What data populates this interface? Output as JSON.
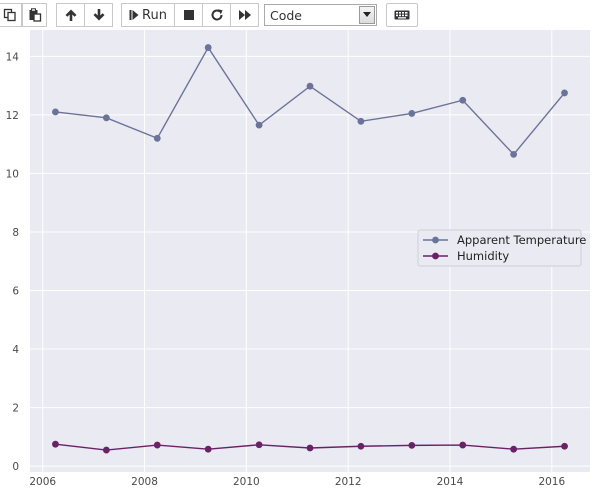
{
  "toolbar": {
    "run_label": "Run",
    "cell_type_value": "Code",
    "cell_type_options": [
      "Code"
    ]
  },
  "icons": {
    "copy": "copy-icon",
    "paste": "paste-icon",
    "up": "arrow-up-icon",
    "down": "arrow-down-icon",
    "run": "step-forward-icon",
    "stop": "stop-icon",
    "restart": "refresh-icon",
    "fast_forward": "fast-forward-icon",
    "keyboard": "keyboard-icon",
    "dropdown": "chevron-down-icon"
  },
  "colors": {
    "plot_background": "#eaeaf2",
    "grid": "#ffffff",
    "apparent_temperature": "#6b7399",
    "humidity": "#6a2267"
  },
  "chart_data": {
    "type": "line",
    "title": "",
    "xlabel": "",
    "ylabel": "",
    "x": [
      2006.25,
      2007.25,
      2008.25,
      2009.25,
      2010.25,
      2011.25,
      2012.25,
      2013.25,
      2014.25,
      2015.25,
      2016.25
    ],
    "series": [
      {
        "name": "Apparent Temperature",
        "marker": "o",
        "values": [
          12.1,
          11.9,
          11.2,
          14.3,
          11.65,
          12.98,
          11.78,
          12.05,
          12.5,
          10.65,
          12.75
        ]
      },
      {
        "name": "Humidity",
        "marker": "o",
        "values": [
          0.75,
          0.55,
          0.72,
          0.58,
          0.73,
          0.62,
          0.68,
          0.71,
          0.72,
          0.58,
          0.68
        ]
      }
    ],
    "xlim": [
      2005.75,
      2016.75
    ],
    "ylim": [
      -0.2,
      14.9
    ],
    "xticks": [
      2006,
      2008,
      2010,
      2012,
      2014,
      2016
    ],
    "yticks": [
      0,
      2,
      4,
      6,
      8,
      10,
      12,
      14
    ],
    "xtick_labels": [
      "2006",
      "2008",
      "2010",
      "2012",
      "2014",
      "2016"
    ],
    "ytick_labels": [
      "0",
      "2",
      "4",
      "6",
      "8",
      "10",
      "12",
      "14"
    ],
    "grid": true,
    "legend_position": "center-right"
  }
}
